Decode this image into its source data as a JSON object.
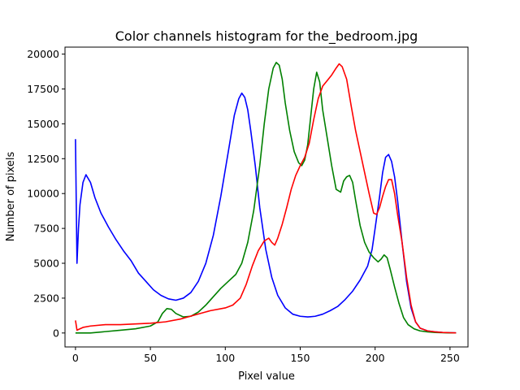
{
  "chart_data": {
    "type": "line",
    "title": "Color channels histogram for the_bedroom.jpg",
    "xlabel": "Pixel value",
    "ylabel": "Number of pixels",
    "xlim": [
      -7,
      262
    ],
    "ylim": [
      -1000,
      20500
    ],
    "xticks": [
      0,
      50,
      100,
      150,
      200,
      250
    ],
    "yticks": [
      0,
      2500,
      5000,
      7500,
      10000,
      12500,
      15000,
      17500,
      20000
    ],
    "grid": false,
    "legend": "none",
    "series": [
      {
        "color": "#0000ff",
        "points": [
          [
            0,
            13900
          ],
          [
            1,
            5000
          ],
          [
            2,
            7500
          ],
          [
            3,
            9200
          ],
          [
            5,
            10800
          ],
          [
            7,
            11350
          ],
          [
            10,
            10800
          ],
          [
            13,
            9700
          ],
          [
            17,
            8600
          ],
          [
            22,
            7600
          ],
          [
            27,
            6700
          ],
          [
            32,
            5900
          ],
          [
            37,
            5200
          ],
          [
            42,
            4300
          ],
          [
            47,
            3700
          ],
          [
            52,
            3100
          ],
          [
            57,
            2700
          ],
          [
            62,
            2450
          ],
          [
            67,
            2350
          ],
          [
            72,
            2500
          ],
          [
            77,
            2900
          ],
          [
            82,
            3700
          ],
          [
            87,
            5000
          ],
          [
            92,
            7000
          ],
          [
            97,
            9800
          ],
          [
            102,
            13000
          ],
          [
            106,
            15600
          ],
          [
            109,
            16800
          ],
          [
            111,
            17200
          ],
          [
            113,
            16900
          ],
          [
            115,
            16000
          ],
          [
            117,
            14500
          ],
          [
            120,
            12000
          ],
          [
            123,
            9000
          ],
          [
            127,
            6000
          ],
          [
            131,
            4000
          ],
          [
            135,
            2700
          ],
          [
            140,
            1800
          ],
          [
            145,
            1350
          ],
          [
            150,
            1200
          ],
          [
            155,
            1150
          ],
          [
            160,
            1200
          ],
          [
            165,
            1350
          ],
          [
            170,
            1600
          ],
          [
            175,
            1900
          ],
          [
            180,
            2400
          ],
          [
            185,
            3000
          ],
          [
            190,
            3800
          ],
          [
            195,
            4800
          ],
          [
            198,
            6000
          ],
          [
            200,
            7500
          ],
          [
            203,
            9800
          ],
          [
            205,
            11500
          ],
          [
            207,
            12600
          ],
          [
            209,
            12800
          ],
          [
            211,
            12300
          ],
          [
            213,
            11200
          ],
          [
            215,
            9500
          ],
          [
            218,
            6500
          ],
          [
            221,
            3700
          ],
          [
            224,
            1800
          ],
          [
            227,
            800
          ],
          [
            230,
            350
          ],
          [
            235,
            150
          ],
          [
            240,
            80
          ],
          [
            245,
            40
          ],
          [
            250,
            20
          ],
          [
            254,
            10
          ]
        ]
      },
      {
        "color": "#008000",
        "points": [
          [
            0,
            0
          ],
          [
            10,
            0
          ],
          [
            20,
            100
          ],
          [
            30,
            200
          ],
          [
            40,
            300
          ],
          [
            50,
            500
          ],
          [
            55,
            800
          ],
          [
            58,
            1400
          ],
          [
            61,
            1750
          ],
          [
            64,
            1700
          ],
          [
            67,
            1400
          ],
          [
            72,
            1150
          ],
          [
            77,
            1200
          ],
          [
            82,
            1500
          ],
          [
            87,
            2000
          ],
          [
            92,
            2600
          ],
          [
            97,
            3200
          ],
          [
            102,
            3700
          ],
          [
            107,
            4200
          ],
          [
            111,
            5000
          ],
          [
            115,
            6500
          ],
          [
            119,
            8800
          ],
          [
            123,
            12000
          ],
          [
            126,
            15000
          ],
          [
            129,
            17500
          ],
          [
            132,
            19000
          ],
          [
            134,
            19400
          ],
          [
            136,
            19200
          ],
          [
            138,
            18200
          ],
          [
            140,
            16500
          ],
          [
            143,
            14500
          ],
          [
            146,
            13000
          ],
          [
            149,
            12200
          ],
          [
            151,
            12000
          ],
          [
            153,
            12400
          ],
          [
            155,
            13500
          ],
          [
            157,
            15500
          ],
          [
            159,
            17500
          ],
          [
            161,
            18700
          ],
          [
            163,
            18000
          ],
          [
            165,
            16000
          ],
          [
            168,
            14000
          ],
          [
            171,
            12000
          ],
          [
            174,
            10300
          ],
          [
            177,
            10100
          ],
          [
            179,
            10900
          ],
          [
            181,
            11200
          ],
          [
            183,
            11300
          ],
          [
            185,
            10800
          ],
          [
            187,
            9500
          ],
          [
            190,
            7700
          ],
          [
            193,
            6500
          ],
          [
            196,
            5800
          ],
          [
            199,
            5400
          ],
          [
            202,
            5100
          ],
          [
            204,
            5300
          ],
          [
            206,
            5600
          ],
          [
            208,
            5400
          ],
          [
            210,
            4600
          ],
          [
            213,
            3300
          ],
          [
            216,
            2100
          ],
          [
            219,
            1100
          ],
          [
            222,
            600
          ],
          [
            226,
            300
          ],
          [
            230,
            150
          ],
          [
            235,
            80
          ],
          [
            240,
            40
          ],
          [
            245,
            20
          ],
          [
            250,
            10
          ],
          [
            254,
            5
          ]
        ]
      },
      {
        "color": "#ff0000",
        "points": [
          [
            0,
            900
          ],
          [
            1,
            200
          ],
          [
            5,
            400
          ],
          [
            10,
            500
          ],
          [
            20,
            600
          ],
          [
            30,
            600
          ],
          [
            40,
            650
          ],
          [
            50,
            700
          ],
          [
            60,
            800
          ],
          [
            70,
            1000
          ],
          [
            80,
            1300
          ],
          [
            90,
            1600
          ],
          [
            100,
            1800
          ],
          [
            105,
            2000
          ],
          [
            110,
            2500
          ],
          [
            114,
            3500
          ],
          [
            118,
            4800
          ],
          [
            122,
            5900
          ],
          [
            126,
            6600
          ],
          [
            129,
            6800
          ],
          [
            131,
            6500
          ],
          [
            133,
            6300
          ],
          [
            135,
            6800
          ],
          [
            138,
            7800
          ],
          [
            141,
            9000
          ],
          [
            144,
            10300
          ],
          [
            147,
            11300
          ],
          [
            150,
            12000
          ],
          [
            153,
            12600
          ],
          [
            156,
            13600
          ],
          [
            159,
            15300
          ],
          [
            162,
            16800
          ],
          [
            165,
            17700
          ],
          [
            168,
            18100
          ],
          [
            171,
            18500
          ],
          [
            174,
            19000
          ],
          [
            176,
            19300
          ],
          [
            178,
            19100
          ],
          [
            181,
            18200
          ],
          [
            184,
            16300
          ],
          [
            187,
            14500
          ],
          [
            190,
            13000
          ],
          [
            193,
            11500
          ],
          [
            196,
            10000
          ],
          [
            199,
            8600
          ],
          [
            201,
            8500
          ],
          [
            203,
            9000
          ],
          [
            205,
            9800
          ],
          [
            207,
            10500
          ],
          [
            209,
            11000
          ],
          [
            211,
            11000
          ],
          [
            213,
            10000
          ],
          [
            215,
            8500
          ],
          [
            218,
            6500
          ],
          [
            221,
            4000
          ],
          [
            224,
            2000
          ],
          [
            227,
            800
          ],
          [
            230,
            350
          ],
          [
            235,
            150
          ],
          [
            240,
            80
          ],
          [
            245,
            40
          ],
          [
            250,
            20
          ],
          [
            254,
            10
          ]
        ]
      }
    ]
  }
}
